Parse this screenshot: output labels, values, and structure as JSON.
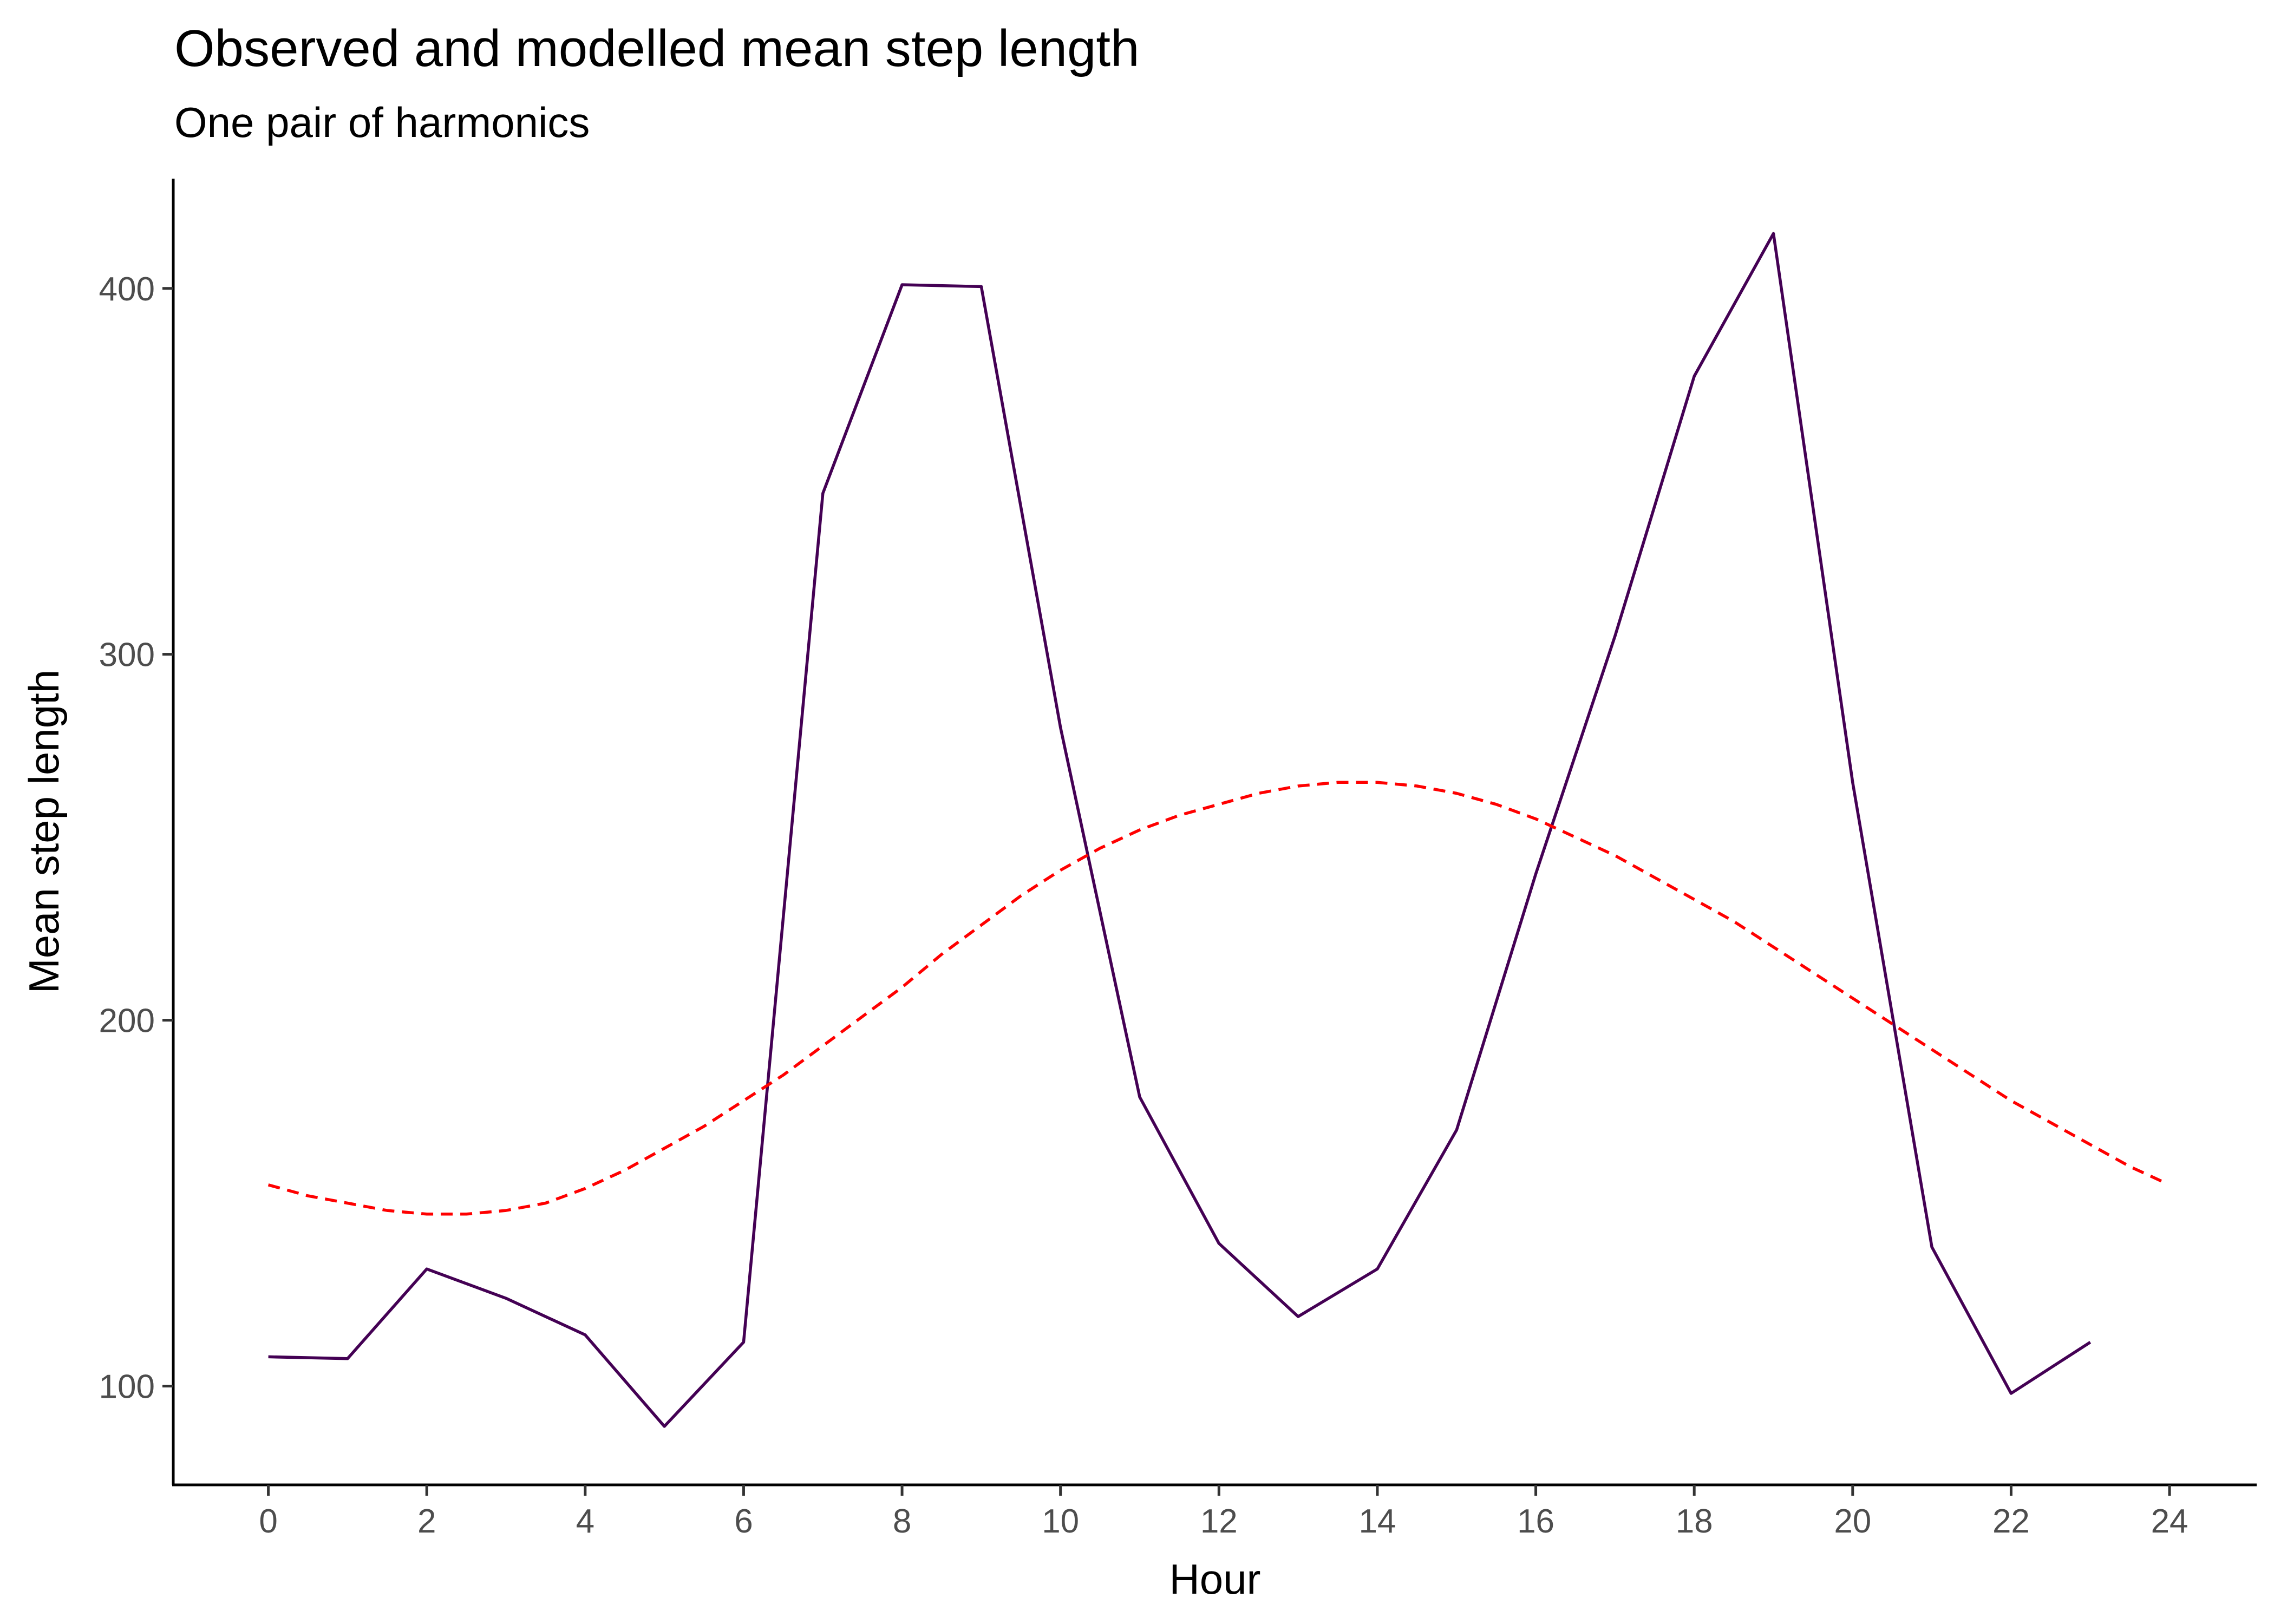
{
  "chart_data": {
    "type": "line",
    "title": "Observed and modelled mean step length",
    "subtitle": "One pair of harmonics",
    "xlabel": "Hour",
    "ylabel": "Mean step length",
    "xlim": [
      -1.2,
      25.1
    ],
    "ylim": [
      73,
      430
    ],
    "x_ticks": [
      0,
      2,
      4,
      6,
      8,
      10,
      12,
      14,
      16,
      18,
      20,
      22,
      24
    ],
    "y_ticks": [
      100,
      200,
      300,
      400
    ],
    "grid": false,
    "legend": "none",
    "series": [
      {
        "style": "solid",
        "color": "#440154",
        "x": [
          0,
          1,
          2,
          3,
          4,
          5,
          6,
          7,
          8,
          9,
          10,
          11,
          12,
          13,
          14,
          15,
          16,
          17,
          18,
          19,
          20,
          21,
          22,
          23
        ],
        "y": [
          108,
          107.5,
          132,
          124,
          114,
          89,
          112,
          344,
          401,
          400.5,
          280,
          179,
          139,
          119,
          132,
          170,
          240,
          305,
          376,
          415,
          265,
          138,
          98,
          112
        ]
      },
      {
        "style": "dashed",
        "color": "#ff0000",
        "x": [
          0,
          0.5,
          1,
          1.5,
          2,
          2.5,
          3,
          3.5,
          4,
          4.5,
          5,
          5.5,
          6,
          6.5,
          7,
          7.5,
          8,
          8.5,
          9,
          9.5,
          10,
          10.5,
          11,
          11.5,
          12,
          12.5,
          13,
          13.5,
          14,
          14.5,
          15,
          15.5,
          16,
          16.5,
          17,
          17.5,
          18,
          18.5,
          19,
          19.5,
          20,
          20.5,
          21,
          21.5,
          22,
          22.5,
          23,
          23.5,
          23.9
        ],
        "y": [
          155,
          152,
          150,
          148,
          147,
          147,
          148,
          150,
          154,
          159,
          165,
          171,
          178,
          185,
          193,
          201,
          209,
          218,
          226,
          234,
          241,
          247,
          252,
          256,
          259,
          262,
          264,
          265,
          265,
          264,
          262,
          259,
          255,
          250,
          245,
          239,
          233,
          227,
          220,
          213,
          206,
          199,
          192,
          185,
          178,
          172,
          166,
          160,
          156
        ]
      }
    ]
  }
}
